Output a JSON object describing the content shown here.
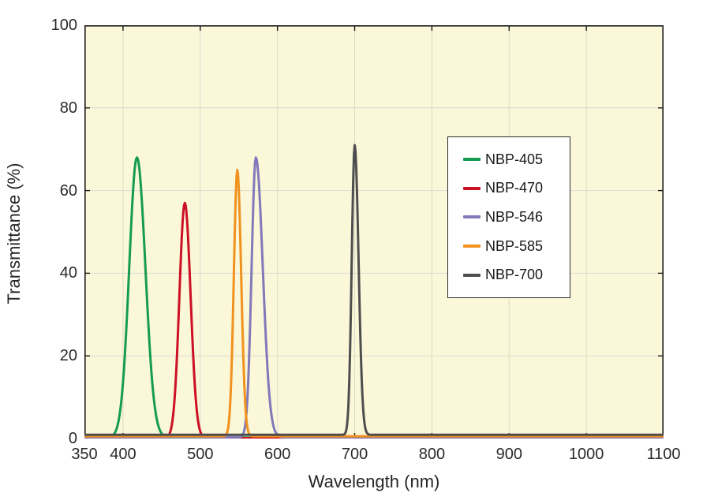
{
  "chart_data": {
    "type": "line",
    "title": "",
    "xlabel": "Wavelength (nm)",
    "ylabel": "Transmittance (%)",
    "xlim": [
      350,
      1100
    ],
    "ylim": [
      0,
      100
    ],
    "xticks": [
      350,
      400,
      500,
      600,
      700,
      800,
      900,
      1000,
      1100
    ],
    "yticks": [
      0,
      20,
      40,
      60,
      80,
      100
    ],
    "grid": true,
    "legend": {
      "position": "upper right inside",
      "entries": [
        "NBP-405",
        "NBP-470",
        "NBP-546",
        "NBP-585",
        "NBP-700"
      ]
    },
    "series": [
      {
        "name": "NBP-405",
        "color": "#169c50",
        "peak_nm": 418,
        "peak_pct": 68,
        "sigma_left_nm": 10,
        "sigma_right_nm": 11,
        "baseline_pct": 0.25
      },
      {
        "name": "NBP-470",
        "color": "#cc1126",
        "peak_nm": 480,
        "peak_pct": 57,
        "sigma_left_nm": 7,
        "sigma_right_nm": 7.5,
        "baseline_pct": 0.1
      },
      {
        "name": "NBP-546",
        "color": "#8279ba",
        "peak_nm": 572,
        "peak_pct": 68,
        "sigma_left_nm": 5.5,
        "sigma_right_nm": 9,
        "baseline_pct": 0.3
      },
      {
        "name": "NBP-585",
        "color": "#f0921d",
        "peak_nm": 548,
        "peak_pct": 65,
        "sigma_left_nm": 4.5,
        "sigma_right_nm": 5,
        "baseline_pct": 0.55
      },
      {
        "name": "NBP-700",
        "color": "#4e4e4e",
        "peak_nm": 700,
        "peak_pct": 71,
        "sigma_left_nm": 3.8,
        "sigma_right_nm": 5,
        "baseline_pct": 0.9
      }
    ],
    "styles": {
      "plot_bg": "#fbf7d9",
      "outer_bg": "#ffffff",
      "grid_color": "#dbdbce",
      "axis_color": "#1a1a1a",
      "text_color": "#2a2a2a",
      "legend_bg": "#ffffff",
      "legend_border": "#2b2b2b",
      "line_width": 3
    }
  }
}
